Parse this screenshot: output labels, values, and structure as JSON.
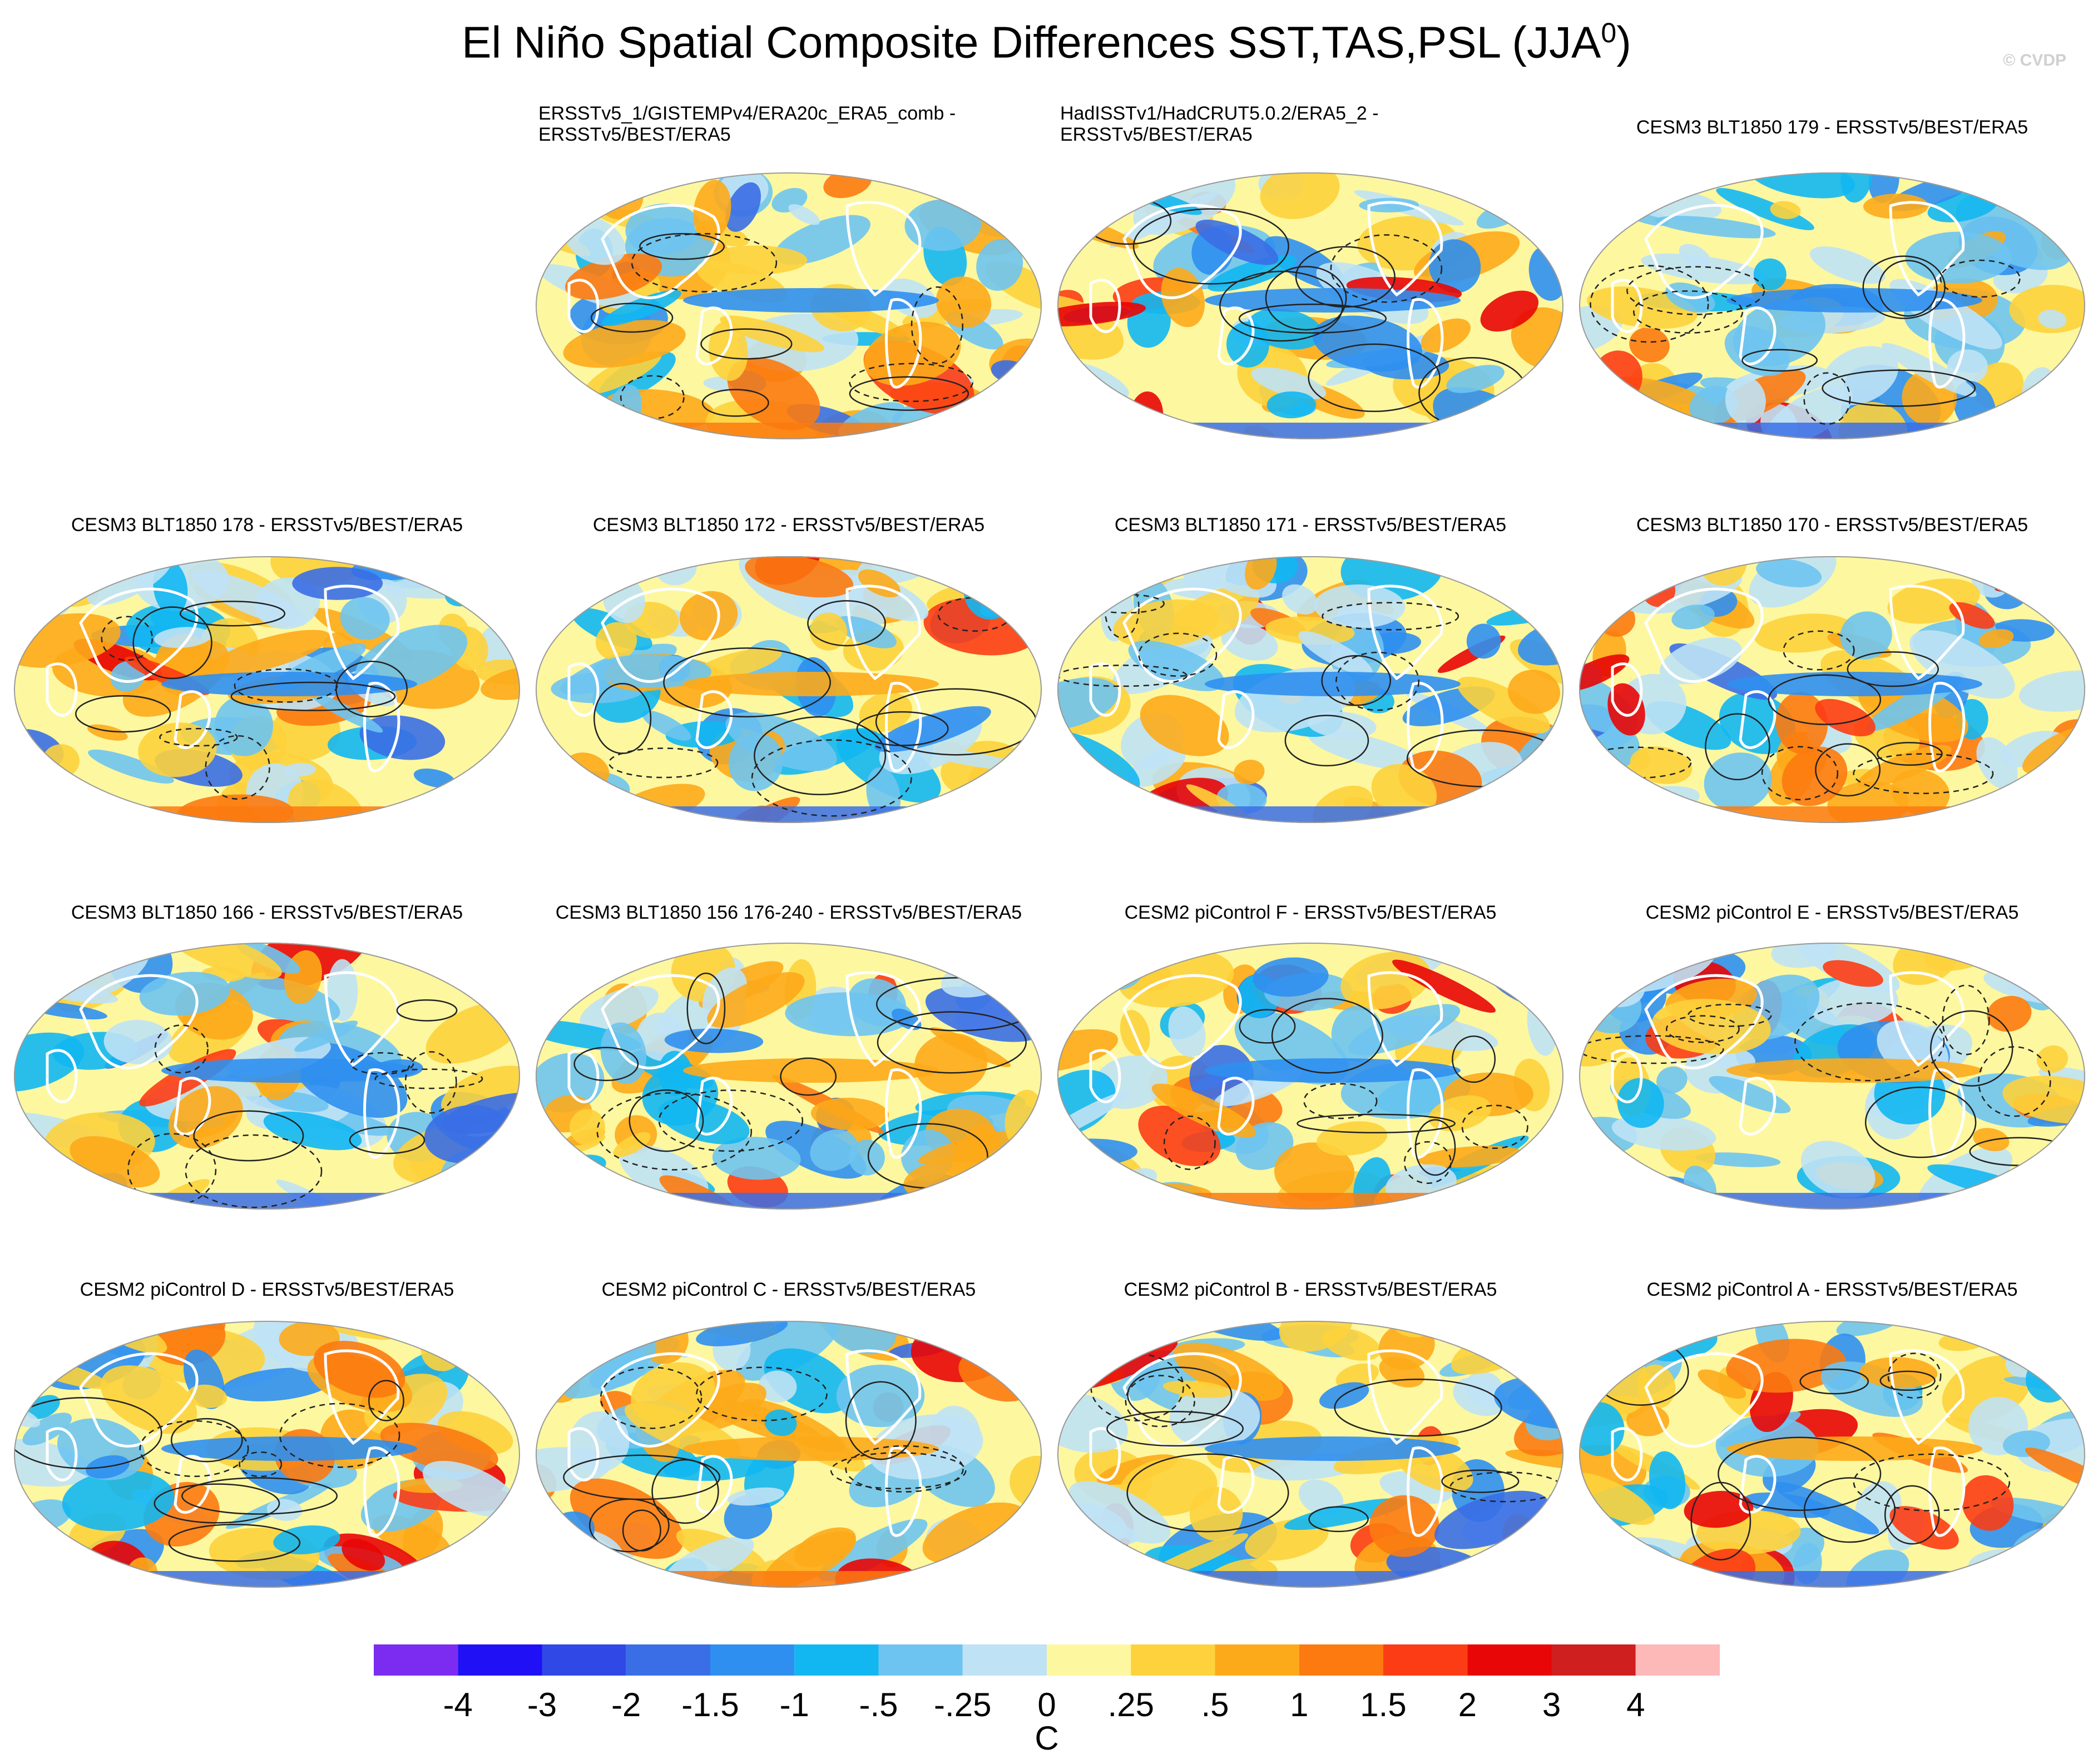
{
  "title": "El Niño Spatial Composite Differences SST,TAS,PSL (JJA",
  "title_sup": "0",
  "title_end": ")",
  "credit": "© CVDP",
  "chart_data": {
    "type": "heatmap",
    "projection": "global ellipse map",
    "panels": [
      {
        "title": [
          "ERSSTv5_1/GISTEMPv4/ERA20c_ERA5_comb -",
          "ERSSTv5/BEST/ERA5"
        ],
        "row": 0,
        "col": 1
      },
      {
        "title": [
          "HadISSTv1/HadCRUT5.0.2/ERA5_2 -",
          "ERSSTv5/BEST/ERA5"
        ],
        "row": 0,
        "col": 2
      },
      {
        "title": [
          "CESM3 BLT1850 179 - ERSSTv5/BEST/ERA5"
        ],
        "row": 0,
        "col": 3
      },
      {
        "title": [
          "CESM3 BLT1850 178 - ERSSTv5/BEST/ERA5"
        ],
        "row": 1,
        "col": 0
      },
      {
        "title": [
          "CESM3 BLT1850 172 - ERSSTv5/BEST/ERA5"
        ],
        "row": 1,
        "col": 1
      },
      {
        "title": [
          "CESM3 BLT1850 171 - ERSSTv5/BEST/ERA5"
        ],
        "row": 1,
        "col": 2
      },
      {
        "title": [
          "CESM3 BLT1850 170 - ERSSTv5/BEST/ERA5"
        ],
        "row": 1,
        "col": 3
      },
      {
        "title": [
          "CESM3 BLT1850 166 - ERSSTv5/BEST/ERA5"
        ],
        "row": 2,
        "col": 0
      },
      {
        "title": [
          "CESM3 BLT1850 156 176-240 - ERSSTv5/BEST/ERA5"
        ],
        "row": 2,
        "col": 1
      },
      {
        "title": [
          "CESM2 piControl F - ERSSTv5/BEST/ERA5"
        ],
        "row": 2,
        "col": 2
      },
      {
        "title": [
          "CESM2 piControl E - ERSSTv5/BEST/ERA5"
        ],
        "row": 2,
        "col": 3
      },
      {
        "title": [
          "CESM2 piControl D - ERSSTv5/BEST/ERA5"
        ],
        "row": 3,
        "col": 0
      },
      {
        "title": [
          "CESM2 piControl C - ERSSTv5/BEST/ERA5"
        ],
        "row": 3,
        "col": 1
      },
      {
        "title": [
          "CESM2 piControl B - ERSSTv5/BEST/ERA5"
        ],
        "row": 3,
        "col": 2
      },
      {
        "title": [
          "CESM2 piControl A - ERSSTv5/BEST/ERA5"
        ],
        "row": 3,
        "col": 3
      }
    ],
    "colorbar": {
      "levels": [
        "-4",
        "-3",
        "-2",
        "-1.5",
        "-1",
        "-.5",
        "-.25",
        "0",
        ".25",
        ".5",
        "1",
        "1.5",
        "2",
        "3",
        "4"
      ],
      "colors": [
        "#7b2cf0",
        "#1f10f5",
        "#2f48e6",
        "#3a6ee6",
        "#2f8ff0",
        "#12b7f2",
        "#6ec4f0",
        "#bfe2f5",
        "#fdf7a0",
        "#fdd23c",
        "#fdaa1a",
        "#fc7a10",
        "#fc3c14",
        "#e80606",
        "#cf1f1f",
        "#fdb8b8"
      ],
      "unit": "C"
    }
  }
}
